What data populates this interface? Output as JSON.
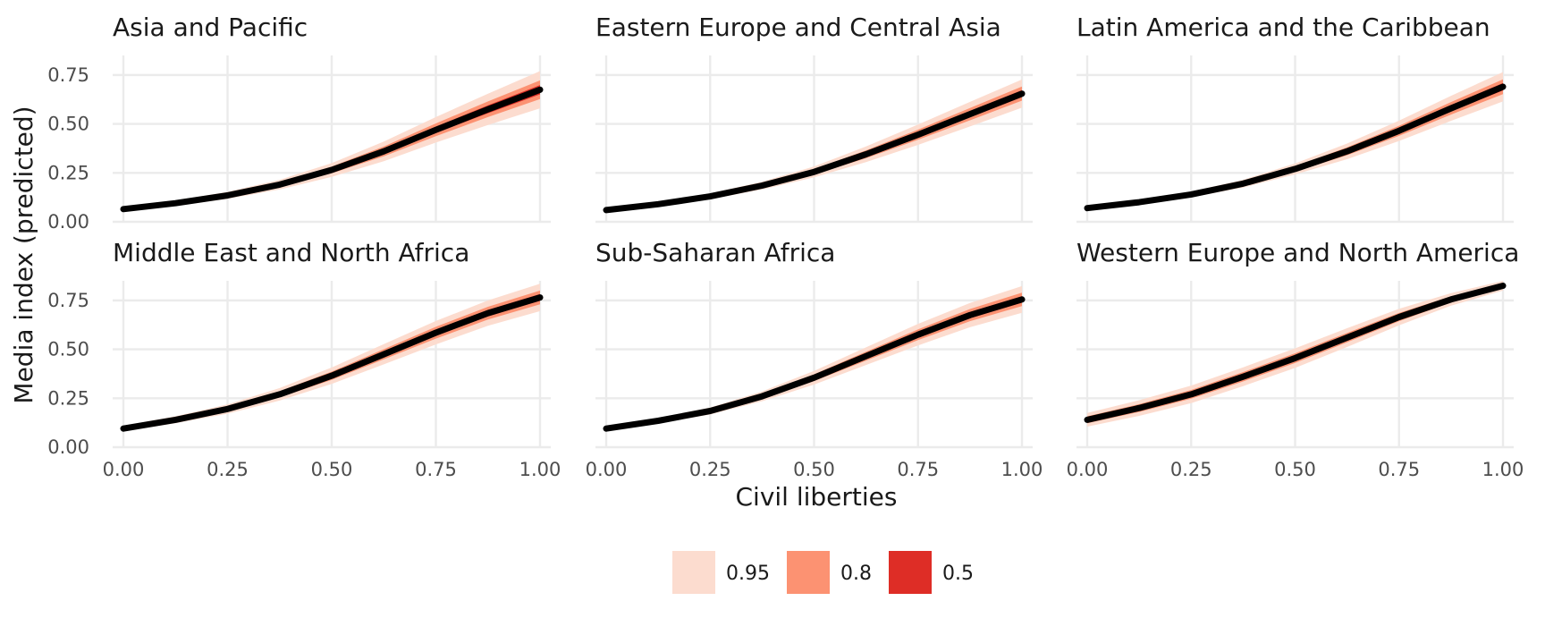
{
  "chart_data": {
    "type": "area",
    "xlabel": "Civil liberties",
    "ylabel": "Media index (predicted)",
    "xlim": [
      0,
      1
    ],
    "ylim": [
      0,
      0.85
    ],
    "x_ticks": [
      0,
      0.25,
      0.5,
      0.75,
      1
    ],
    "x_tick_labels": [
      "0.00",
      "0.25",
      "0.50",
      "0.75",
      "1.00"
    ],
    "y_ticks": [
      0,
      0.25,
      0.5,
      0.75
    ],
    "y_tick_labels": [
      "0.00",
      "0.25",
      "0.50",
      "0.75"
    ],
    "grid": true,
    "legend": {
      "position": "bottom",
      "entries": [
        {
          "label": "0.95",
          "color": "#fcdccf"
        },
        {
          "label": "0.8",
          "color": "#fc9272"
        },
        {
          "label": "0.5",
          "color": "#de2d26"
        }
      ]
    },
    "line_color": "#000000",
    "x": [
      0,
      0.125,
      0.25,
      0.375,
      0.5,
      0.625,
      0.75,
      0.875,
      1
    ],
    "panels": [
      {
        "title": "Asia and Pacific",
        "y": [
          0.065,
          0.095,
          0.135,
          0.19,
          0.265,
          0.36,
          0.47,
          0.575,
          0.675
        ],
        "w95": [
          0.012,
          0.014,
          0.018,
          0.025,
          0.035,
          0.05,
          0.065,
          0.08,
          0.095
        ]
      },
      {
        "title": "Eastern Europe and Central Asia",
        "y": [
          0.06,
          0.09,
          0.13,
          0.185,
          0.255,
          0.345,
          0.445,
          0.55,
          0.655
        ],
        "w95": [
          0.01,
          0.012,
          0.015,
          0.02,
          0.028,
          0.04,
          0.052,
          0.063,
          0.072
        ]
      },
      {
        "title": "Latin America and the Caribbean",
        "y": [
          0.07,
          0.1,
          0.14,
          0.195,
          0.27,
          0.36,
          0.465,
          0.58,
          0.69
        ],
        "w95": [
          0.01,
          0.012,
          0.015,
          0.02,
          0.028,
          0.04,
          0.052,
          0.064,
          0.075
        ]
      },
      {
        "title": "Middle East and North Africa",
        "y": [
          0.095,
          0.14,
          0.195,
          0.27,
          0.365,
          0.475,
          0.585,
          0.685,
          0.765
        ],
        "w95": [
          0.014,
          0.018,
          0.024,
          0.032,
          0.042,
          0.052,
          0.06,
          0.065,
          0.07
        ]
      },
      {
        "title": "Sub-Saharan Africa",
        "y": [
          0.095,
          0.135,
          0.185,
          0.26,
          0.355,
          0.465,
          0.575,
          0.675,
          0.755
        ],
        "w95": [
          0.012,
          0.014,
          0.018,
          0.025,
          0.035,
          0.045,
          0.055,
          0.062,
          0.068
        ]
      },
      {
        "title": "Western Europe and North America",
        "y": [
          0.14,
          0.2,
          0.27,
          0.36,
          0.455,
          0.56,
          0.665,
          0.755,
          0.825
        ],
        "w95": [
          0.035,
          0.04,
          0.045,
          0.048,
          0.05,
          0.048,
          0.042,
          0.032,
          0.025
        ]
      }
    ]
  }
}
